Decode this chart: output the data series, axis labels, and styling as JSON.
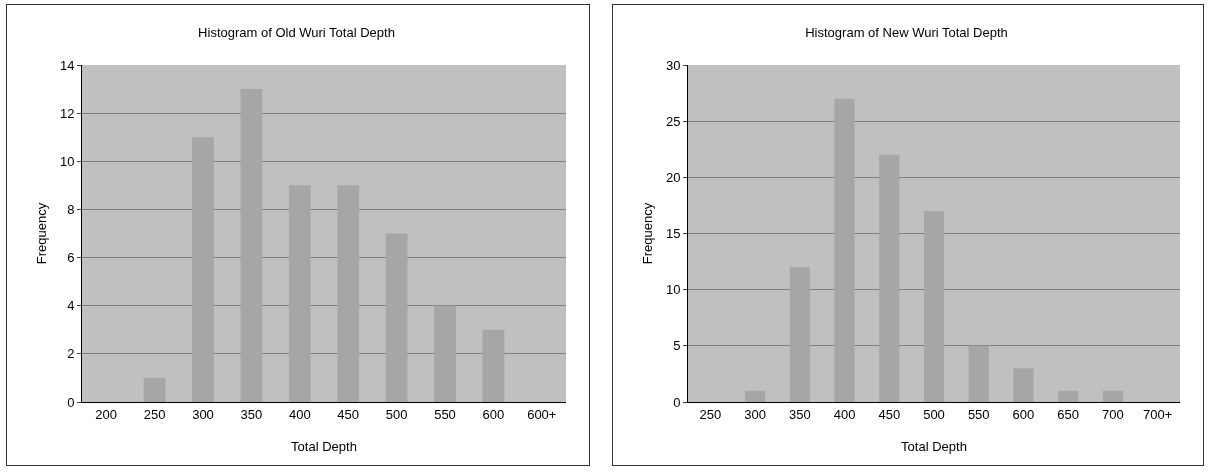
{
  "chart_data": [
    {
      "type": "bar",
      "title": "Histogram of Old Wuri Total Depth",
      "xlabel": "Total Depth",
      "ylabel": "Frequency",
      "categories": [
        "200",
        "250",
        "300",
        "350",
        "400",
        "450",
        "500",
        "550",
        "600",
        "600+"
      ],
      "values": [
        0,
        1,
        11,
        13,
        9,
        9,
        7,
        4,
        3,
        0
      ],
      "color": "#a6a6a6",
      "ylim": [
        0,
        14
      ],
      "yticks": [
        0,
        2,
        4,
        6,
        8,
        10,
        12,
        14
      ],
      "grid": "y"
    },
    {
      "type": "bar",
      "title": "Histogram of New Wuri Total Depth",
      "xlabel": "Total Depth",
      "ylabel": "Frequency",
      "categories": [
        "250",
        "300",
        "350",
        "400",
        "450",
        "500",
        "550",
        "600",
        "650",
        "700",
        "700+"
      ],
      "values": [
        0,
        1,
        12,
        27,
        22,
        17,
        5,
        3,
        1,
        1,
        0
      ],
      "color": "#a6a6a6",
      "ylim": [
        0,
        30
      ],
      "yticks": [
        0,
        5,
        10,
        15,
        20,
        25,
        30
      ],
      "grid": "y"
    }
  ]
}
